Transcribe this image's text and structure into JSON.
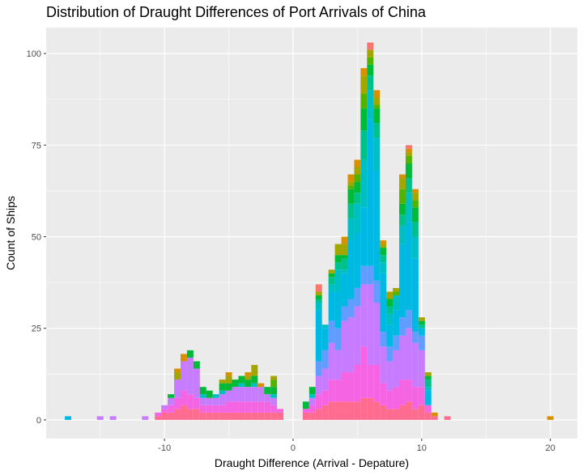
{
  "chart_data": {
    "type": "bar",
    "subtype": "stacked-histogram",
    "title": "Distribution of Draught Differences of Port Arrivals of China",
    "xlabel": "Draught Difference (Arrival - Depature)",
    "ylabel": "Count of Ships",
    "xlim": [
      -19.2,
      22.1
    ],
    "ylim": [
      -5.1,
      107.1
    ],
    "x_ticks": [
      -10,
      0,
      10,
      20
    ],
    "y_ticks": [
      0,
      25,
      50,
      75,
      100
    ],
    "grid": true,
    "panel_background": "#ebebeb",
    "grid_color": "#ffffff",
    "legend": "none",
    "bin_width": 0.5,
    "layer_colors": [
      "#ff6c90",
      "#f564e3",
      "#c77cff",
      "#619cff",
      "#00b9e3",
      "#00bfc4",
      "#00c08b",
      "#00ba38",
      "#53b400",
      "#a3a500",
      "#d89000",
      "#f8766d"
    ],
    "bins": [
      {
        "x": -17.5,
        "layers": [
          0,
          0,
          0,
          0,
          1,
          0,
          0,
          0,
          0,
          0,
          0,
          0
        ]
      },
      {
        "x": -15.0,
        "layers": [
          0,
          0,
          1,
          0,
          0,
          0,
          0,
          0,
          0,
          0,
          0,
          0
        ]
      },
      {
        "x": -14.0,
        "layers": [
          0,
          0,
          1,
          0,
          0,
          0,
          0,
          0,
          0,
          0,
          0,
          0
        ]
      },
      {
        "x": -11.5,
        "layers": [
          0,
          0,
          1,
          0,
          0,
          0,
          0,
          0,
          0,
          0,
          0,
          0
        ]
      },
      {
        "x": -10.5,
        "layers": [
          1,
          1,
          0,
          0,
          0,
          0,
          0,
          0,
          0,
          0,
          0,
          0
        ]
      },
      {
        "x": -10.0,
        "layers": [
          2,
          1,
          1,
          0,
          0,
          0,
          0,
          0,
          0,
          0,
          0,
          0
        ]
      },
      {
        "x": -9.5,
        "layers": [
          2,
          2,
          2,
          0,
          0,
          0,
          0,
          1,
          0,
          0,
          0,
          0
        ]
      },
      {
        "x": -9.0,
        "layers": [
          3,
          3,
          5,
          0,
          0,
          0,
          0,
          0,
          0,
          2,
          1,
          0
        ]
      },
      {
        "x": -8.5,
        "layers": [
          4,
          4,
          8,
          0,
          0,
          0,
          0,
          0,
          0,
          0,
          2,
          0
        ]
      },
      {
        "x": -8.0,
        "layers": [
          3,
          4,
          10,
          0,
          0,
          0,
          0,
          2,
          0,
          0,
          0,
          0
        ]
      },
      {
        "x": -7.5,
        "layers": [
          3,
          3,
          8,
          0,
          0,
          0,
          0,
          2,
          0,
          0,
          0,
          0
        ]
      },
      {
        "x": -7.0,
        "layers": [
          2,
          2,
          2,
          0,
          0,
          1,
          0,
          2,
          0,
          0,
          0,
          0
        ]
      },
      {
        "x": -6.5,
        "layers": [
          2,
          2,
          2,
          0,
          0,
          0,
          0,
          2,
          0,
          0,
          0,
          0
        ]
      },
      {
        "x": -6.0,
        "layers": [
          2,
          2,
          2,
          0,
          0,
          1,
          0,
          0,
          0,
          0,
          0,
          0
        ]
      },
      {
        "x": -5.5,
        "layers": [
          2,
          2,
          3,
          0,
          0,
          1,
          0,
          2,
          0,
          1,
          0,
          0
        ]
      },
      {
        "x": -5.0,
        "layers": [
          2,
          3,
          3,
          0,
          0,
          0,
          0,
          2,
          0,
          2,
          1,
          0
        ]
      },
      {
        "x": -4.5,
        "layers": [
          2,
          3,
          4,
          0,
          0,
          0,
          0,
          2,
          0,
          0,
          0,
          0
        ]
      },
      {
        "x": -4.0,
        "layers": [
          2,
          3,
          4,
          0,
          0,
          1,
          0,
          2,
          0,
          0,
          0,
          0
        ]
      },
      {
        "x": -3.5,
        "layers": [
          2,
          3,
          4,
          0,
          0,
          0,
          0,
          2,
          0,
          1,
          1,
          0
        ]
      },
      {
        "x": -3.0,
        "layers": [
          2,
          3,
          4,
          0,
          0,
          1,
          0,
          2,
          0,
          3,
          0,
          0
        ]
      },
      {
        "x": -2.5,
        "layers": [
          2,
          3,
          4,
          0,
          0,
          0,
          0,
          0,
          0,
          0,
          1,
          0
        ]
      },
      {
        "x": -2.0,
        "layers": [
          2,
          3,
          2,
          0,
          0,
          0,
          0,
          2,
          0,
          0,
          0,
          0
        ]
      },
      {
        "x": -1.5,
        "layers": [
          2,
          2,
          2,
          0,
          0,
          1,
          0,
          2,
          2,
          1,
          0,
          0
        ]
      },
      {
        "x": -1.0,
        "layers": [
          2,
          1,
          0,
          0,
          0,
          0,
          0,
          0,
          0,
          0,
          0,
          0
        ]
      },
      {
        "x": 1.0,
        "layers": [
          2,
          1,
          0,
          0,
          0,
          0,
          0,
          2,
          0,
          0,
          0,
          0
        ]
      },
      {
        "x": 1.5,
        "layers": [
          2,
          2,
          2,
          0,
          0,
          1,
          0,
          2,
          0,
          0,
          0,
          0
        ]
      },
      {
        "x": 2.0,
        "layers": [
          3,
          4,
          5,
          4,
          14,
          2,
          1,
          1,
          0,
          1,
          0,
          2
        ]
      },
      {
        "x": 2.5,
        "layers": [
          4,
          4,
          6,
          5,
          6,
          1,
          0,
          0,
          0,
          0,
          0,
          0
        ]
      },
      {
        "x": 3.0,
        "layers": [
          5,
          6,
          10,
          6,
          8,
          2,
          2,
          1,
          0,
          1,
          0,
          0
        ]
      },
      {
        "x": 3.5,
        "layers": [
          5,
          6,
          8,
          6,
          10,
          6,
          2,
          2,
          0,
          3,
          0,
          0
        ]
      },
      {
        "x": 4.0,
        "layers": [
          5,
          8,
          14,
          4,
          9,
          1,
          3,
          1,
          0,
          3,
          2,
          0
        ]
      },
      {
        "x": 4.5,
        "layers": [
          5,
          8,
          15,
          5,
          16,
          6,
          4,
          4,
          1,
          1,
          2,
          0
        ]
      },
      {
        "x": 5.0,
        "layers": [
          5,
          10,
          16,
          5,
          15,
          8,
          3,
          3,
          2,
          2,
          2,
          0
        ]
      },
      {
        "x": 5.5,
        "layers": [
          6,
          14,
          17,
          5,
          16,
          13,
          8,
          6,
          4,
          5,
          2,
          0
        ]
      },
      {
        "x": 6.0,
        "layers": [
          6,
          9,
          22,
          5,
          40,
          8,
          4,
          3,
          2,
          2,
          0,
          2
        ]
      },
      {
        "x": 6.5,
        "layers": [
          5,
          10,
          17,
          6,
          30,
          9,
          4,
          4,
          1,
          2,
          2,
          0
        ]
      },
      {
        "x": 7.0,
        "layers": [
          4,
          6,
          10,
          4,
          16,
          3,
          2,
          2,
          0,
          1,
          1,
          0
        ]
      },
      {
        "x": 7.5,
        "layers": [
          3,
          5,
          8,
          4,
          6,
          3,
          2,
          2,
          0,
          2,
          0,
          0
        ]
      },
      {
        "x": 8.0,
        "layers": [
          3,
          6,
          10,
          4,
          7,
          4,
          0,
          0,
          1,
          1,
          0,
          0
        ]
      },
      {
        "x": 8.5,
        "layers": [
          4,
          7,
          12,
          5,
          20,
          5,
          3,
          3,
          4,
          3,
          1,
          0
        ]
      },
      {
        "x": 9.0,
        "layers": [
          5,
          6,
          14,
          5,
          24,
          8,
          4,
          4,
          2,
          1,
          1,
          1
        ]
      },
      {
        "x": 9.5,
        "layers": [
          3,
          6,
          12,
          3,
          20,
          6,
          4,
          4,
          2,
          2,
          1,
          0
        ]
      },
      {
        "x": 10.0,
        "layers": [
          4,
          5,
          10,
          4,
          2,
          0,
          1,
          1,
          0,
          1,
          0,
          0
        ]
      },
      {
        "x": 10.5,
        "layers": [
          2,
          2,
          0,
          0,
          4,
          1,
          2,
          1,
          0,
          1,
          0,
          0
        ]
      },
      {
        "x": 11.0,
        "layers": [
          1,
          0,
          0,
          0,
          0,
          0,
          0,
          0,
          0,
          0,
          1,
          0
        ]
      },
      {
        "x": 12.0,
        "layers": [
          1,
          0,
          0,
          0,
          0,
          0,
          0,
          0,
          0,
          0,
          0,
          0
        ]
      },
      {
        "x": 20.0,
        "layers": [
          0,
          0,
          0,
          0,
          0,
          0,
          0,
          0,
          0,
          0,
          1,
          0
        ]
      }
    ]
  }
}
